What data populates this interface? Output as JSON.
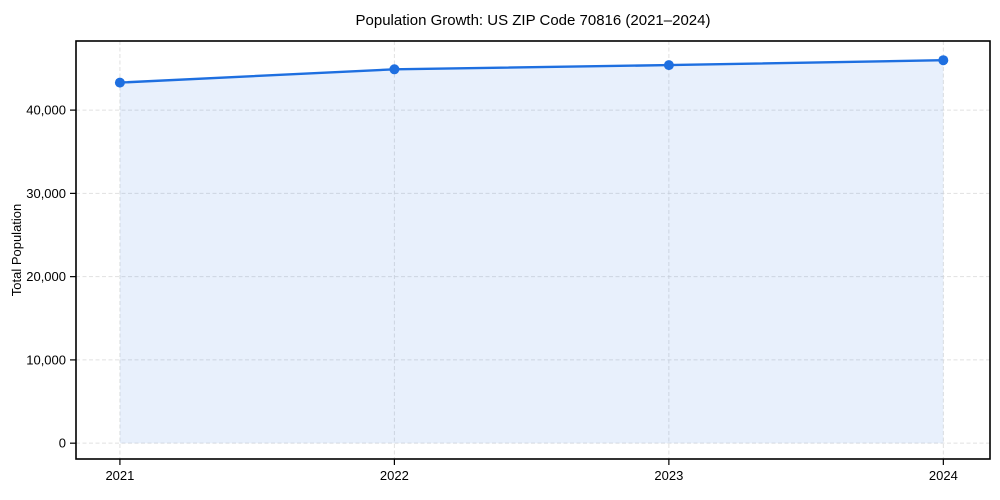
{
  "figure": {
    "background": "#ffffff"
  },
  "chart_data": {
    "type": "line",
    "title": "Population Growth: US ZIP Code 70816 (2021–2024)",
    "xlabel": "",
    "ylabel": "Total Population",
    "x": [
      2021,
      2022,
      2023,
      2024
    ],
    "x_tick_labels": [
      "2021",
      "2022",
      "2023",
      "2024"
    ],
    "series": [
      {
        "name": "Total Population",
        "values": [
          43300,
          44900,
          45400,
          46000
        ]
      }
    ],
    "y_ticks": [
      0,
      10000,
      20000,
      30000,
      40000
    ],
    "y_tick_labels": [
      "0",
      "10,000",
      "20,000",
      "30,000",
      "40,000"
    ],
    "xlim": [
      2020.84,
      2024.17
    ],
    "ylim": [
      -1900,
      48300
    ],
    "grid": true,
    "grid_style": "dashed",
    "legend_position": "none",
    "area_fill": true,
    "colors": {
      "line": "#1e6fe0",
      "marker": "#1e6fe0",
      "area": "rgba(30, 111, 224, 0.10)",
      "grid": "#d9d9d9",
      "spine": "#000000",
      "text": "#000000"
    },
    "marker_radius": 5,
    "line_width": 2.4
  }
}
